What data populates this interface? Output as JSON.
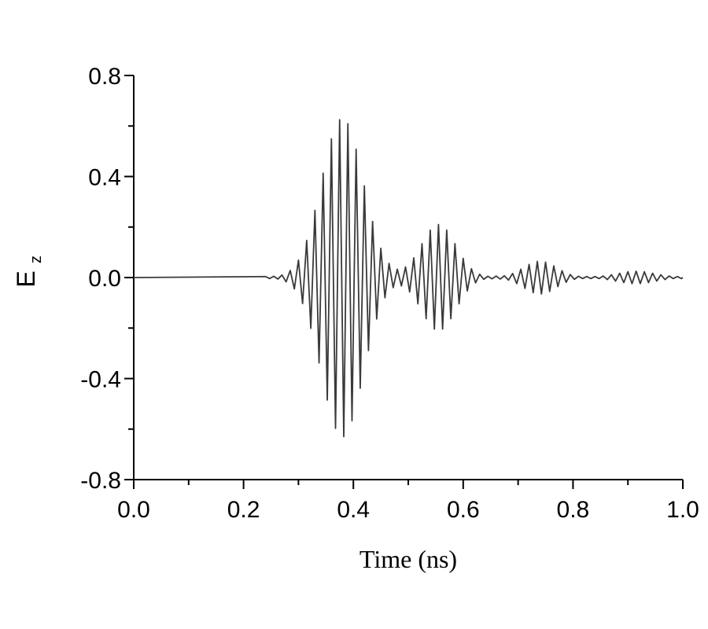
{
  "chart_data": {
    "type": "line",
    "xlabel": "Time  (ns)",
    "ylabel": {
      "text": "E",
      "subscript": "z"
    },
    "color": "#3a3a3a",
    "xlim": [
      0,
      1
    ],
    "ylim": [
      -0.8,
      0.8
    ],
    "xticks": [
      {
        "value": 0,
        "label": "0.0"
      },
      0.2,
      0.4,
      0.6,
      0.8,
      {
        "value": 1,
        "label": "1.0"
      }
    ],
    "yticks": [
      -0.8,
      -0.4,
      {
        "value": 0,
        "label": "0.0"
      },
      0.4,
      0.8
    ],
    "xminor": [
      0.1,
      0.3,
      0.5,
      0.7,
      0.9
    ],
    "yminor": [
      -0.6,
      -0.2,
      0.2,
      0.6
    ],
    "x": [
      0,
      0.24,
      0.2475,
      0.255,
      0.2625,
      0.27,
      0.2775,
      0.285,
      0.2925,
      0.3,
      0.3075,
      0.315,
      0.3225,
      0.33,
      0.3375,
      0.345,
      0.3525,
      0.36,
      0.3675,
      0.375,
      0.3825,
      0.39,
      0.3975,
      0.405,
      0.4125,
      0.42,
      0.4275,
      0.435,
      0.4425,
      0.45,
      0.4575,
      0.465,
      0.4725,
      0.48,
      0.4875,
      0.495,
      0.5025,
      0.51,
      0.5175,
      0.525,
      0.5325,
      0.54,
      0.5475,
      0.555,
      0.5625,
      0.57,
      0.5775,
      0.585,
      0.5925,
      0.6,
      0.6075,
      0.615,
      0.6225,
      0.63,
      0.6375,
      0.645,
      0.6525,
      0.66,
      0.6675,
      0.675,
      0.6825,
      0.69,
      0.6975,
      0.705,
      0.7125,
      0.72,
      0.7275,
      0.735,
      0.7425,
      0.75,
      0.7575,
      0.765,
      0.7725,
      0.78,
      0.7875,
      0.795,
      0.8025,
      0.81,
      0.8175,
      0.825,
      0.8325,
      0.84,
      0.8475,
      0.855,
      0.8625,
      0.87,
      0.8775,
      0.885,
      0.8925,
      0.9,
      0.9075,
      0.915,
      0.9225,
      0.93,
      0.9375,
      0.945,
      0.9525,
      0.96,
      0.9675,
      0.975,
      0.9825,
      0.99,
      0.9975,
      1.0
    ],
    "values": [
      0,
      0.004,
      -0.004,
      0.005,
      -0.006,
      0.01,
      -0.017,
      0.028,
      -0.045,
      0.069,
      -0.103,
      0.147,
      -0.201,
      0.266,
      -0.338,
      0.413,
      -0.485,
      0.549,
      -0.597,
      0.625,
      -0.63,
      0.609,
      -0.567,
      0.508,
      -0.438,
      0.363,
      -0.289,
      0.222,
      -0.164,
      0.116,
      -0.08,
      0.056,
      -0.04,
      0.033,
      -0.033,
      0.042,
      -0.057,
      0.078,
      -0.104,
      0.134,
      -0.163,
      0.188,
      -0.204,
      0.21,
      -0.204,
      0.188,
      -0.163,
      0.134,
      -0.104,
      0.076,
      -0.053,
      0.035,
      -0.021,
      0.013,
      -0.007,
      0.005,
      -0.005,
      0.006,
      -0.006,
      0.007,
      -0.01,
      0.016,
      -0.024,
      0.033,
      -0.043,
      0.052,
      -0.06,
      0.064,
      -0.065,
      0.061,
      -0.055,
      0.046,
      -0.036,
      0.027,
      -0.019,
      0.012,
      -0.007,
      0.005,
      -0.004,
      0.004,
      -0.004,
      0.004,
      -0.004,
      0.006,
      -0.008,
      0.011,
      -0.014,
      0.017,
      -0.02,
      0.023,
      -0.024,
      0.025,
      -0.024,
      0.023,
      -0.02,
      0.017,
      -0.014,
      0.011,
      -0.008,
      0.006,
      -0.004,
      0.004,
      -0.004,
      0
    ]
  }
}
